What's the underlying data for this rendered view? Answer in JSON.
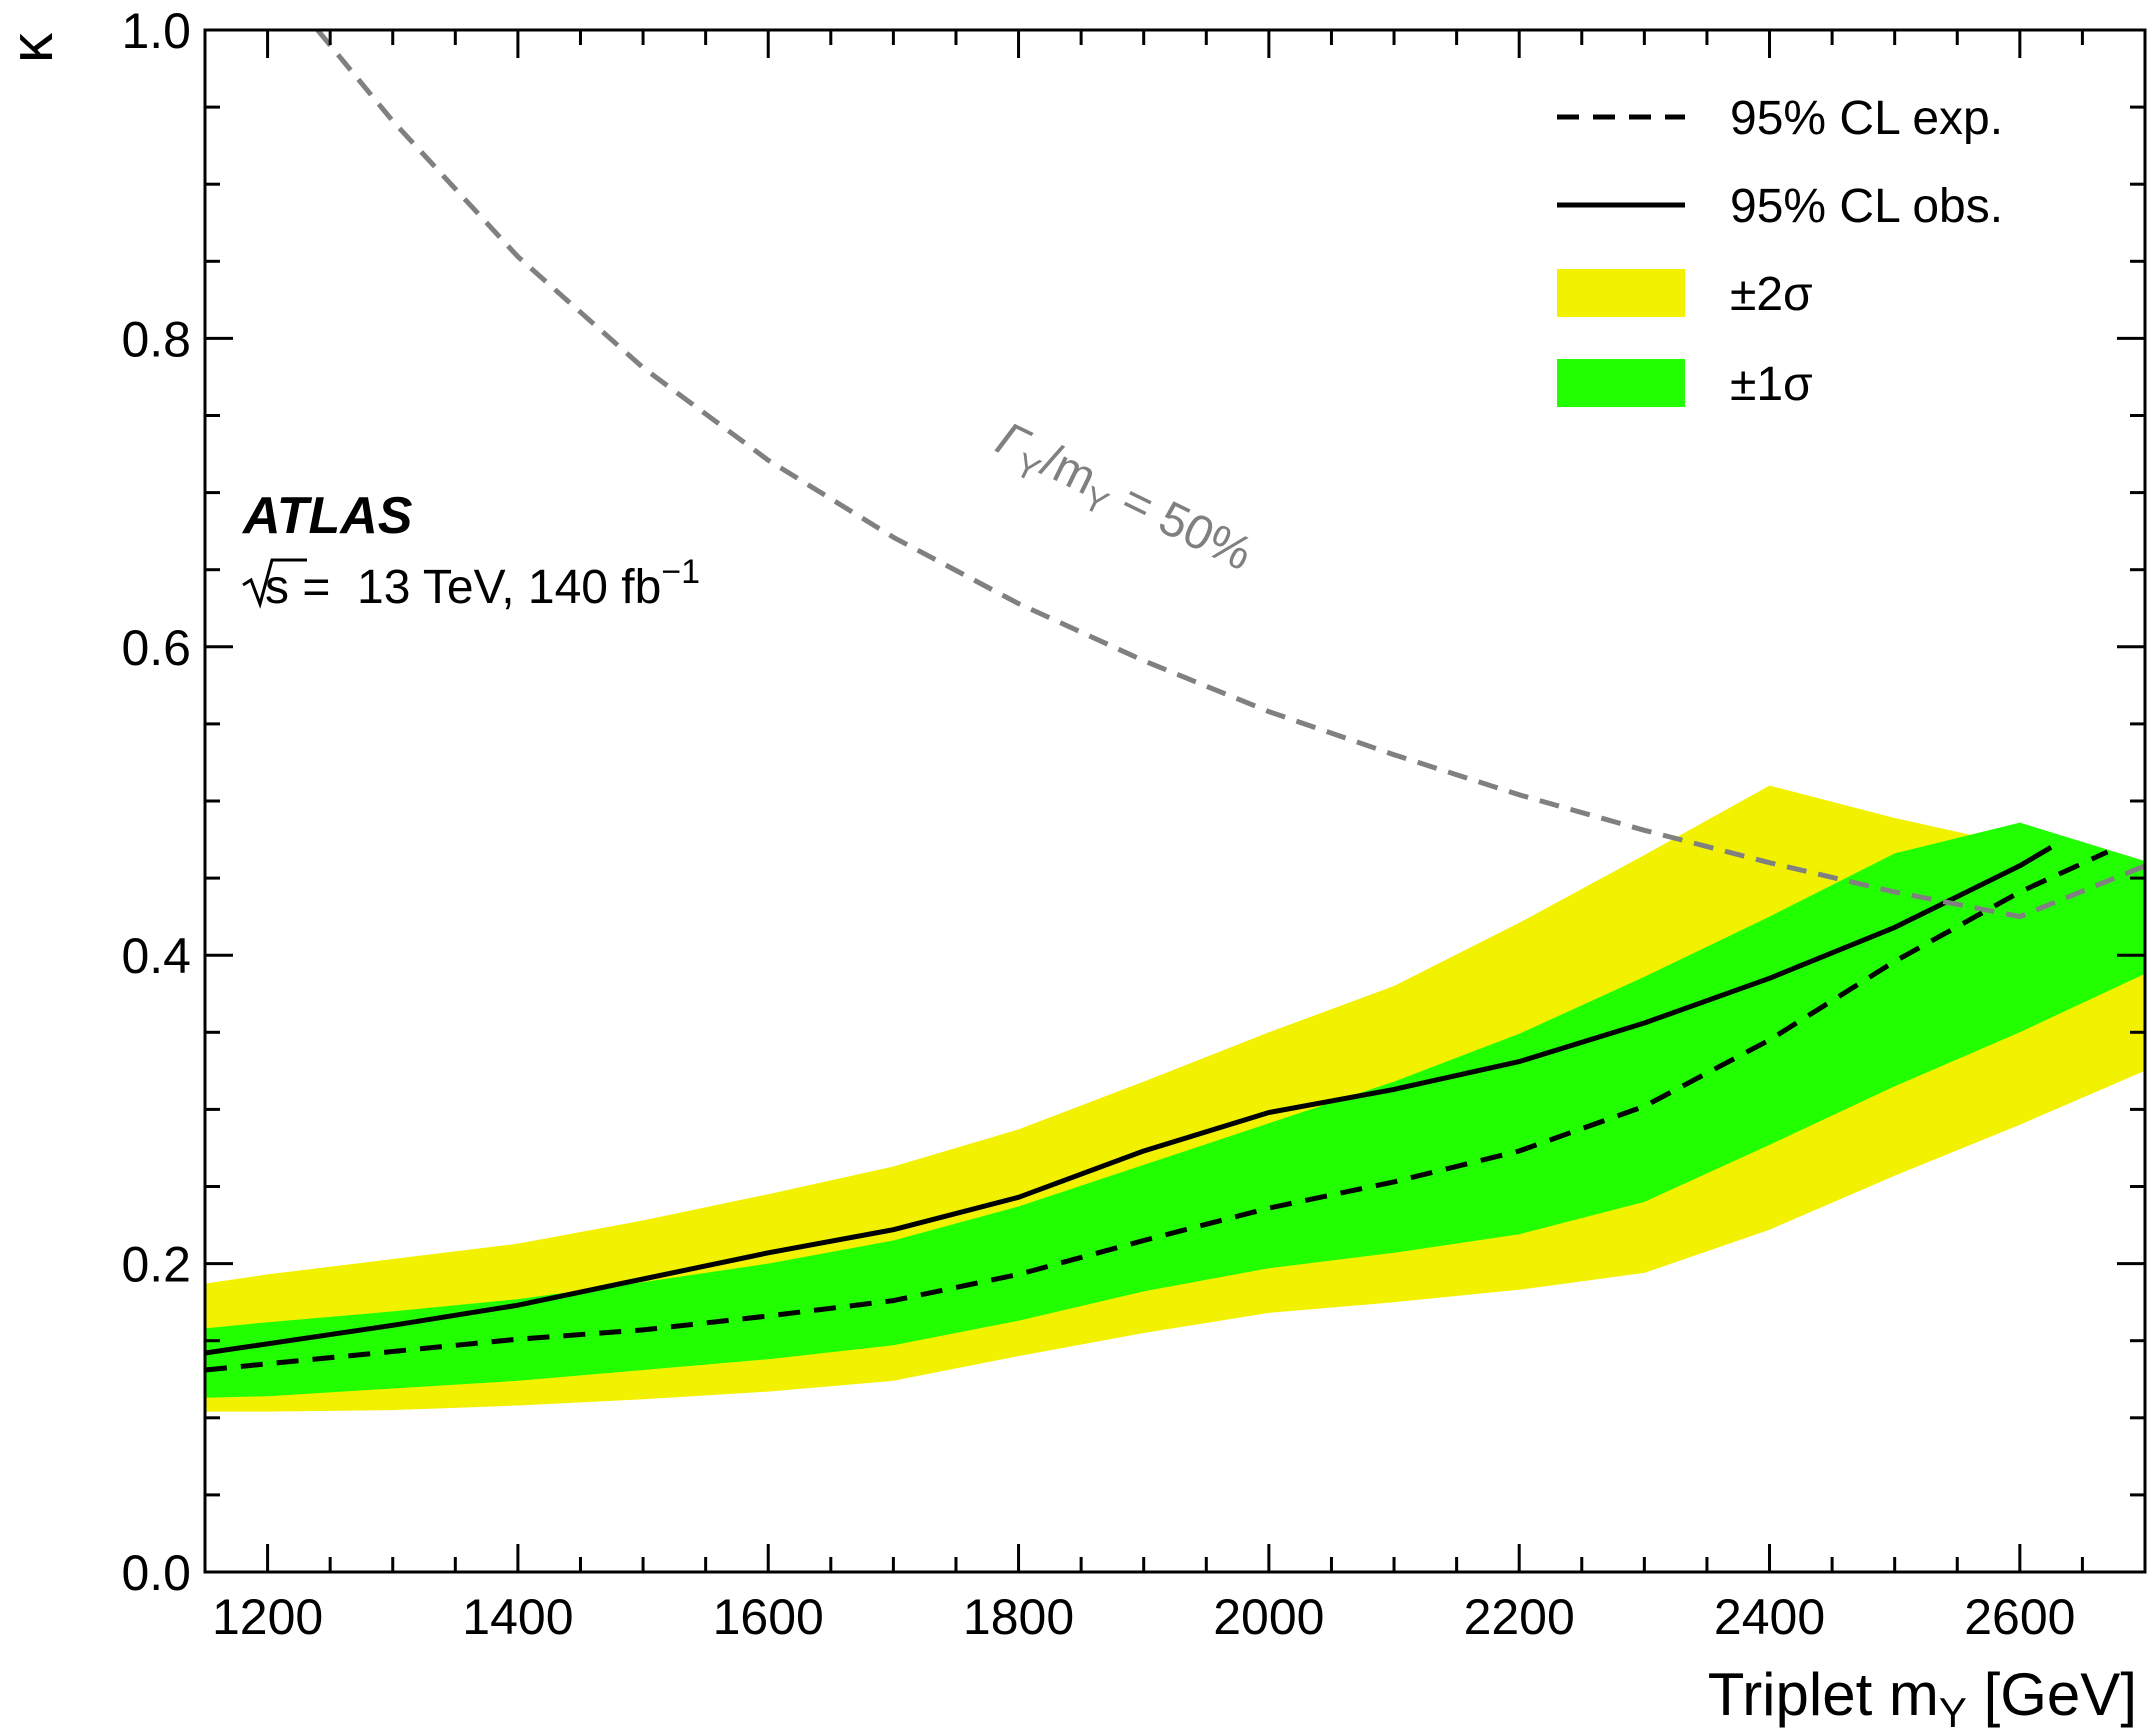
{
  "chart_data": {
    "type": "line",
    "xlabel_prefix": "Triplet m",
    "xlabel_sub": "Y",
    "xlabel_suffix": " [GeV]",
    "ylabel": "κ",
    "xlim": [
      1150,
      2700
    ],
    "ylim": [
      0.0,
      1.0
    ],
    "x_ticks": [
      1200,
      1400,
      1600,
      1800,
      2000,
      2200,
      2400,
      2600
    ],
    "y_ticks": [
      0.0,
      0.2,
      0.4,
      0.6,
      0.8,
      1.0
    ],
    "y_tick_labels": [
      "0.0",
      "0.2",
      "0.4",
      "0.6",
      "0.8",
      "1.0"
    ],
    "grid": false,
    "legend_position": "top-right",
    "experiment": "ATLAS",
    "energy_label_prefix": "s",
    "energy_label_suffix": " =  13 TeV, 140 fb",
    "energy_label_sup": "−1",
    "annotation": {
      "gamma": "Γ",
      "sub1": "Y",
      "mid": "/m",
      "sub2": "Y",
      "tail": " = 50%"
    },
    "colors": {
      "band_2sigma": "#f2f200",
      "band_1sigma": "#22ff00",
      "observed": "#000000",
      "expected": "#000000",
      "width_line": "#808080"
    },
    "series": [
      {
        "name": "95% CL exp.",
        "style": "dashed",
        "x": [
          1150,
          1200,
          1300,
          1400,
          1500,
          1600,
          1700,
          1800,
          1900,
          2000,
          2100,
          2200,
          2300,
          2400,
          2500,
          2600,
          2670
        ],
        "y": [
          0.131,
          0.135,
          0.143,
          0.151,
          0.157,
          0.166,
          0.176,
          0.193,
          0.215,
          0.236,
          0.253,
          0.273,
          0.302,
          0.345,
          0.396,
          0.441,
          0.467
        ]
      },
      {
        "name": "95% CL obs.",
        "style": "solid",
        "x": [
          1150,
          1200,
          1300,
          1400,
          1500,
          1600,
          1700,
          1800,
          1900,
          2000,
          2100,
          2200,
          2300,
          2400,
          2500,
          2600,
          2625
        ],
        "y": [
          0.142,
          0.148,
          0.16,
          0.173,
          0.19,
          0.207,
          0.222,
          0.243,
          0.273,
          0.298,
          0.313,
          0.331,
          0.356,
          0.385,
          0.418,
          0.458,
          0.47
        ]
      },
      {
        "name": "Γ_Y/m_Y = 50%",
        "style": "dashed-gray",
        "x": [
          1240,
          1300,
          1400,
          1500,
          1600,
          1700,
          1800,
          1900,
          2000,
          2100,
          2200,
          2300,
          2400,
          2500,
          2600,
          2700
        ],
        "y": [
          1.0,
          0.941,
          0.853,
          0.781,
          0.721,
          0.671,
          0.628,
          0.591,
          0.558,
          0.53,
          0.504,
          0.481,
          0.46,
          0.441,
          0.425,
          0.458
        ]
      }
    ],
    "bands": [
      {
        "name": "±2σ",
        "x": [
          1150,
          1200,
          1300,
          1400,
          1500,
          1600,
          1700,
          1800,
          1900,
          2000,
          2100,
          2200,
          2300,
          2400,
          2500,
          2600,
          2700
        ],
        "low": [
          0.104,
          0.104,
          0.105,
          0.108,
          0.112,
          0.117,
          0.124,
          0.14,
          0.155,
          0.168,
          0.175,
          0.183,
          0.194,
          0.222,
          0.257,
          0.29,
          0.325
        ],
        "high": [
          0.187,
          0.193,
          0.203,
          0.213,
          0.228,
          0.245,
          0.263,
          0.287,
          0.318,
          0.35,
          0.38,
          0.421,
          0.465,
          0.51,
          0.489,
          0.471,
          0.461
        ]
      },
      {
        "name": "±1σ",
        "x": [
          1150,
          1200,
          1300,
          1400,
          1500,
          1600,
          1700,
          1800,
          1900,
          2000,
          2100,
          2200,
          2300,
          2400,
          2500,
          2600,
          2700
        ],
        "low": [
          0.113,
          0.114,
          0.119,
          0.124,
          0.131,
          0.138,
          0.147,
          0.163,
          0.182,
          0.197,
          0.207,
          0.219,
          0.24,
          0.277,
          0.315,
          0.35,
          0.388
        ],
        "high": [
          0.158,
          0.162,
          0.169,
          0.177,
          0.188,
          0.2,
          0.215,
          0.237,
          0.264,
          0.291,
          0.318,
          0.349,
          0.386,
          0.425,
          0.466,
          0.486,
          0.461
        ]
      }
    ],
    "legend": [
      {
        "label": "95% CL exp.",
        "kind": "dashed"
      },
      {
        "label": "95% CL obs.",
        "kind": "solid"
      },
      {
        "label": "±2σ",
        "kind": "band2"
      },
      {
        "label": "±1σ",
        "kind": "band1"
      }
    ]
  }
}
